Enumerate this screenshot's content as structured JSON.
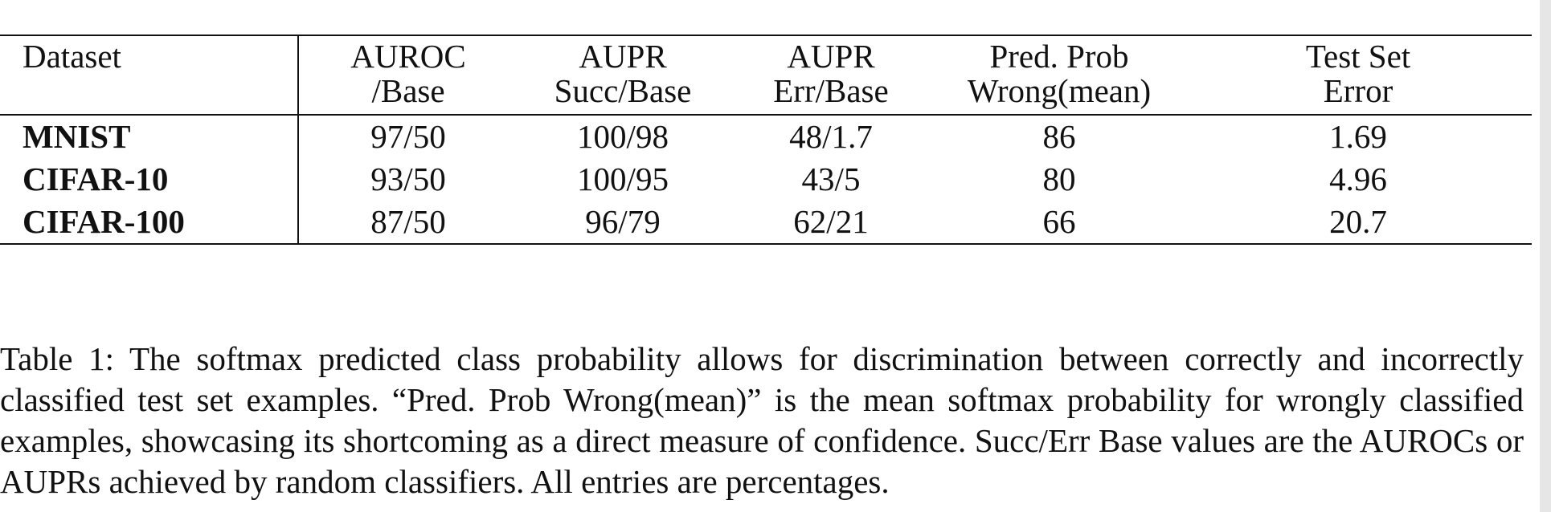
{
  "table": {
    "headers": [
      [
        "Dataset",
        ""
      ],
      [
        "AUROC",
        "/Base"
      ],
      [
        "AUPR",
        "Succ/Base"
      ],
      [
        "AUPR",
        "Err/Base"
      ],
      [
        "Pred. Prob",
        "Wrong(mean)"
      ],
      [
        "Test Set",
        "Error"
      ]
    ],
    "rows": [
      [
        "MNIST",
        "97/50",
        "100/98",
        "48/1.7",
        "86",
        "1.69"
      ],
      [
        "CIFAR-10",
        "93/50",
        "100/95",
        "43/5",
        "80",
        "4.96"
      ],
      [
        "CIFAR-100",
        "87/50",
        "96/79",
        "62/21",
        "66",
        "20.7"
      ]
    ]
  },
  "caption": "Table 1: The softmax predicted class probability allows for discrimination between correctly and incorrectly classified test set examples. “Pred. Prob Wrong(mean)” is the mean softmax probability for wrongly classified examples, showcasing its shortcoming as a direct measure of confidence. Succ/Err Base values are the AUROCs or AUPRs achieved by random classifiers.  All entries are percentages."
}
